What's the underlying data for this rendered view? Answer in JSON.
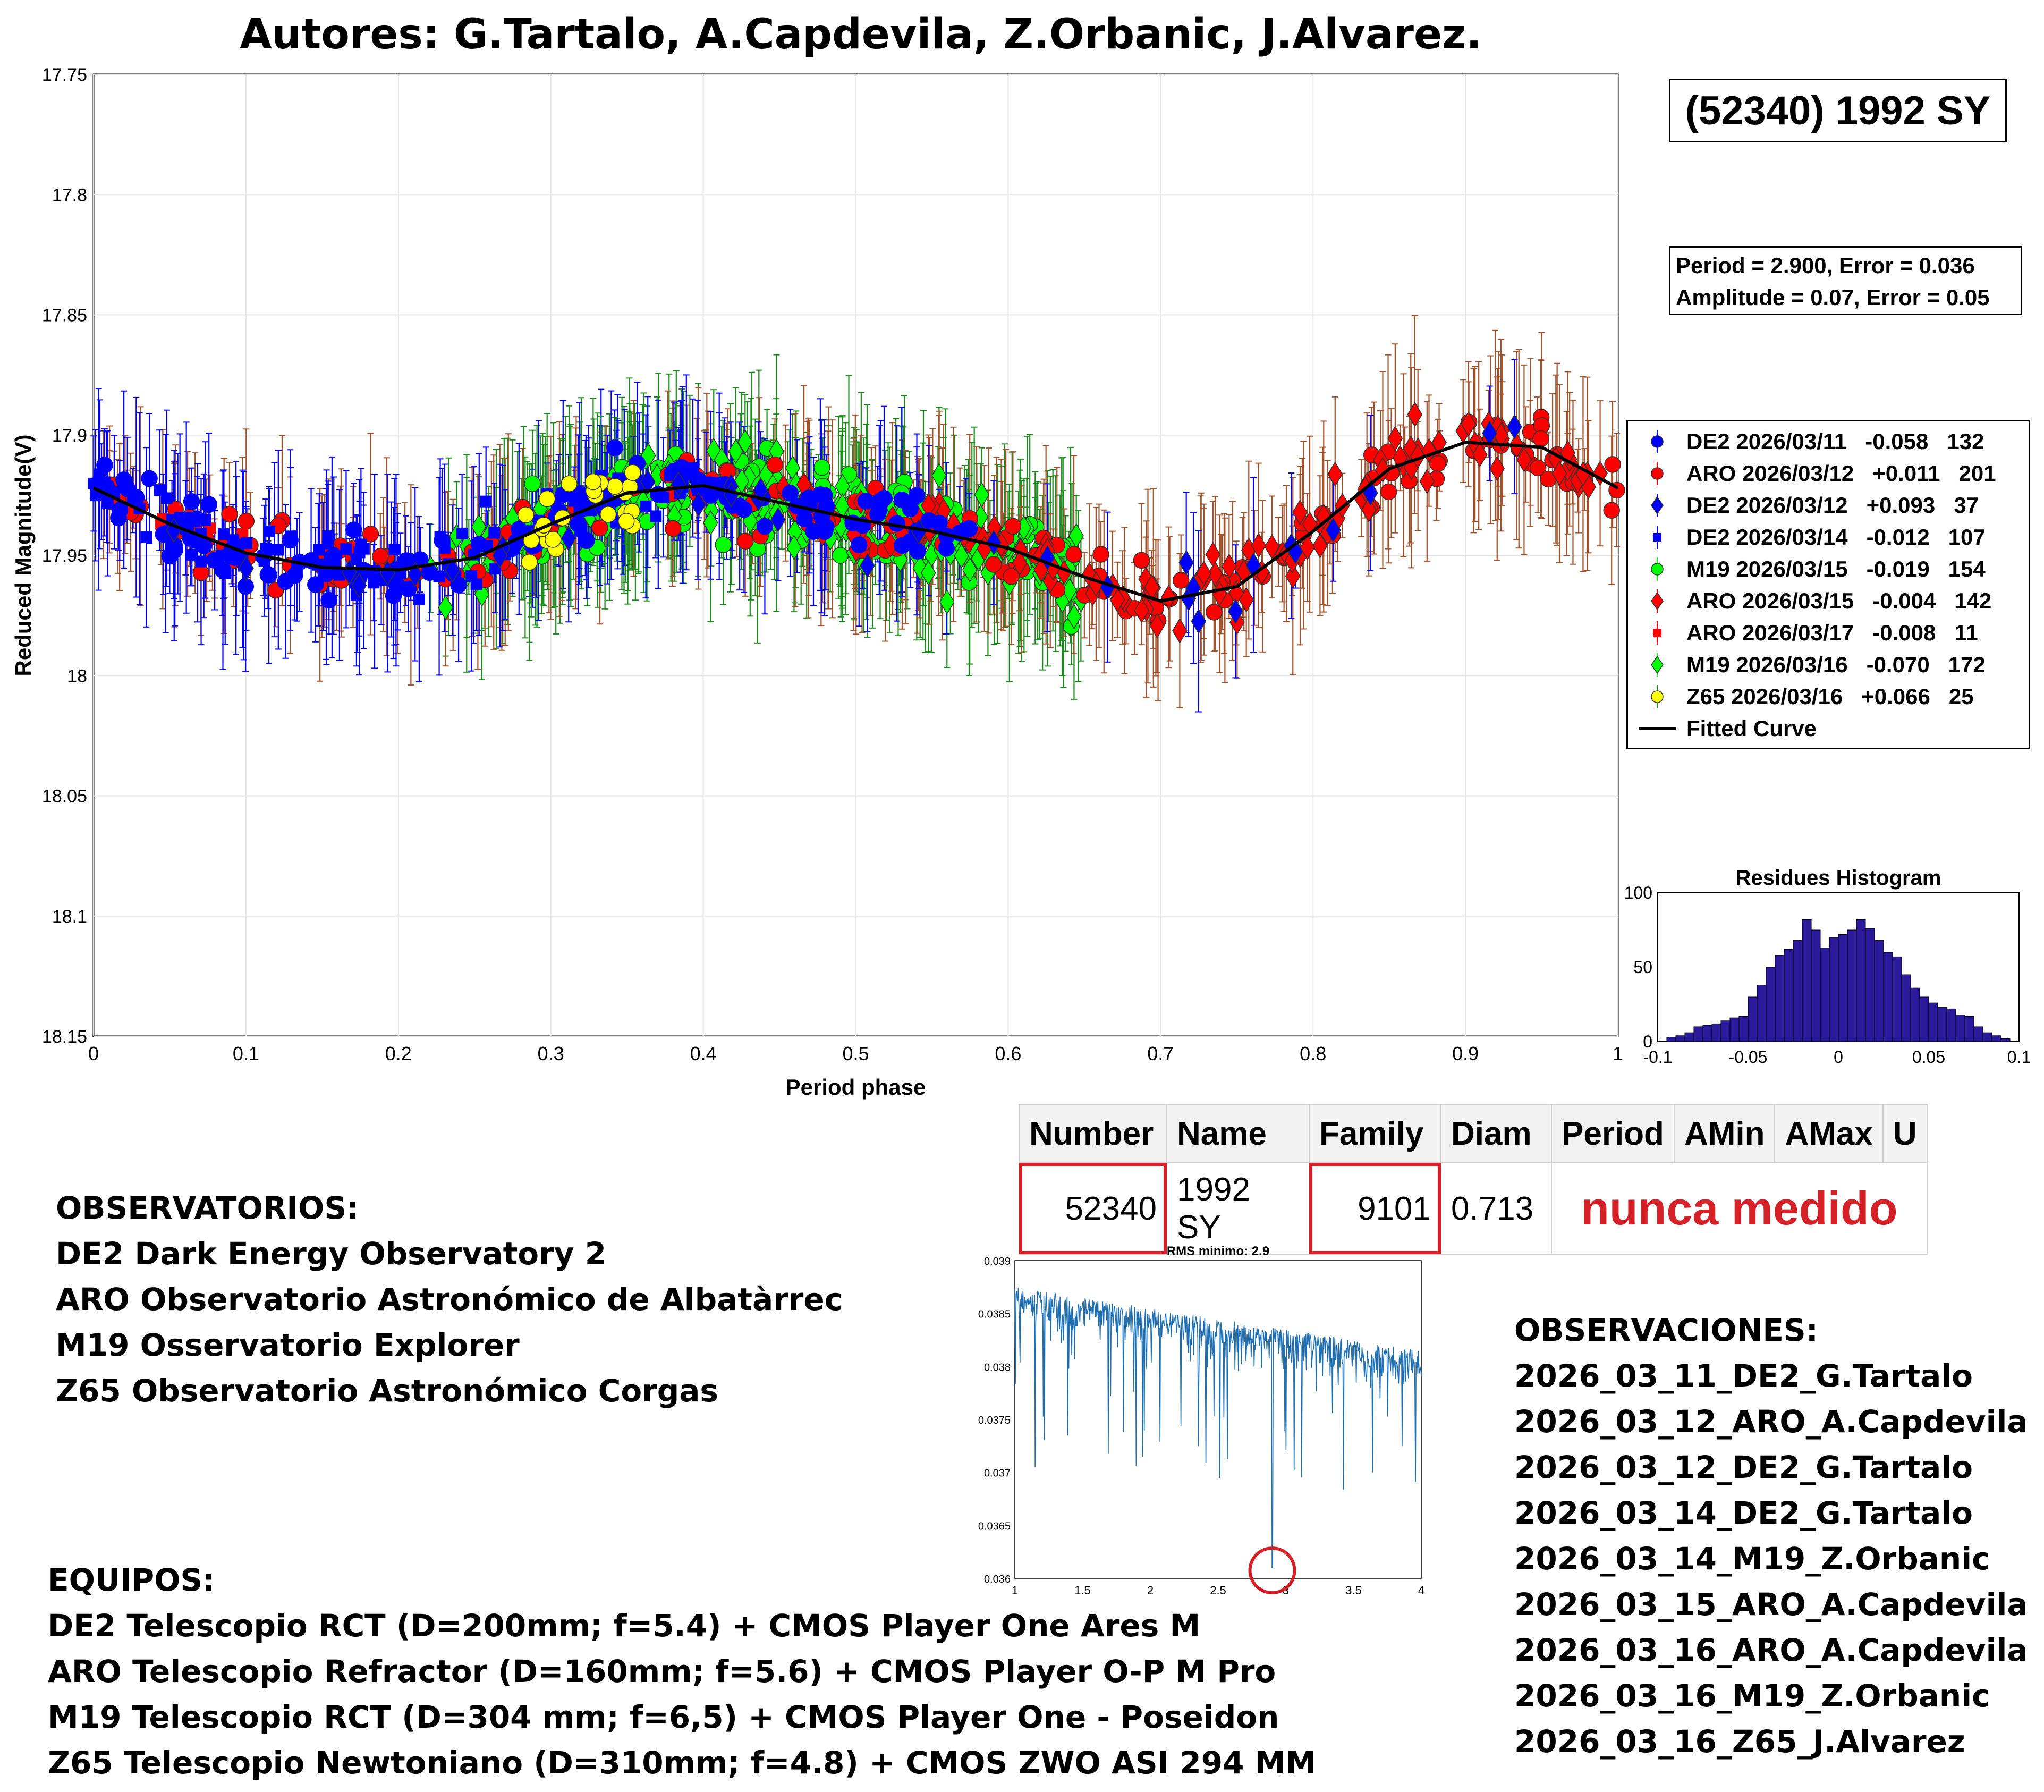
{
  "title": "Autores: G.Tartalo, A.Capdevila, Z.Orbanic, J.Alvarez.",
  "object_label": "(52340) 1992 SY",
  "period_box": {
    "line1": "Period =  2.900, Error = 0.036",
    "line2": "Amplitude = 0.07, Error = 0.05"
  },
  "colors": {
    "blue": "#0000ff",
    "red": "#ff0000",
    "green": "#00ff00",
    "yellow": "#ffff00",
    "err_red": "#a0522d",
    "err_green": "#1a8a1a",
    "hist": "#2b1a9a",
    "line": "#1f6fb0",
    "accent": "#d42027"
  },
  "chart_data": [
    {
      "type": "scatter",
      "title": "",
      "xlabel": "Period phase",
      "ylabel": "Reduced Magnitude(V)",
      "xlim": [
        0,
        1
      ],
      "ylim": [
        18.15,
        17.75
      ],
      "y_reversed": true,
      "xticks": [
        "0",
        "0.1",
        "0.2",
        "0.3",
        "0.4",
        "0.5",
        "0.6",
        "0.7",
        "0.8",
        "0.9",
        "1"
      ],
      "yticks": [
        "17.75",
        "17.8",
        "17.85",
        "17.9",
        "17.95",
        "18",
        "18.05",
        "18.1",
        "18.15"
      ],
      "legend": [
        {
          "name": "DE2 2026/03/11",
          "offset": "-0.058",
          "n": "132",
          "marker": "circle",
          "color": "#0000ff",
          "range": [
            0.0,
            0.58
          ],
          "center": 17.95
        },
        {
          "name": "ARO 2026/03/12",
          "offset": "+0.011",
          "n": "201",
          "marker": "circle",
          "color": "#ff0000",
          "range": [
            0.0,
            1.0
          ],
          "center": 17.94
        },
        {
          "name": "DE2 2026/03/12",
          "offset": "+0.093",
          "n": "37",
          "marker": "diamond",
          "color": "#0000ff",
          "range": [
            0.0,
            1.0
          ],
          "center": 17.93
        },
        {
          "name": "DE2 2026/03/14",
          "offset": "-0.012",
          "n": "107",
          "marker": "square",
          "color": "#0000ff",
          "range": [
            0.0,
            0.42
          ],
          "center": 17.95
        },
        {
          "name": "M19 2026/03/15",
          "offset": "-0.019",
          "n": "154",
          "marker": "circle",
          "color": "#00ff00",
          "range": [
            0.28,
            0.65
          ],
          "center": 17.93
        },
        {
          "name": "ARO 2026/03/15",
          "offset": "-0.004",
          "n": "142",
          "marker": "diamond",
          "color": "#ff0000",
          "range": [
            0.45,
            1.0
          ],
          "center": 17.93
        },
        {
          "name": "ARO 2026/03/17",
          "offset": "-0.008",
          "n": "11",
          "marker": "square",
          "color": "#ff0000",
          "range": [
            0.0,
            0.1
          ],
          "center": 17.93
        },
        {
          "name": "M19 2026/03/16",
          "offset": "-0.070",
          "n": "172",
          "marker": "diamond",
          "color": "#00ff00",
          "range": [
            0.22,
            0.65
          ],
          "center": 17.93
        },
        {
          "name": "Z65 2026/03/16",
          "offset": "+0.066",
          "n": "25",
          "marker": "circle",
          "color": "#ffff00",
          "range": [
            0.28,
            0.36
          ],
          "center": 17.93
        },
        {
          "name": "Fitted Curve",
          "offset": "",
          "n": "",
          "marker": "line",
          "color": "#000000"
        }
      ],
      "fitted_curve": {
        "x": [
          0,
          0.05,
          0.1,
          0.15,
          0.2,
          0.25,
          0.3,
          0.35,
          0.4,
          0.45,
          0.5,
          0.55,
          0.6,
          0.65,
          0.7,
          0.75,
          0.8,
          0.85,
          0.9,
          0.95,
          1.0
        ],
        "y": [
          17.922,
          17.937,
          17.949,
          17.955,
          17.956,
          17.951,
          17.937,
          17.924,
          17.921,
          17.928,
          17.935,
          17.94,
          17.947,
          17.959,
          17.969,
          17.963,
          17.94,
          17.914,
          17.903,
          17.905,
          17.922
        ]
      }
    },
    {
      "type": "bar",
      "title": "Residues Histogram",
      "xlim": [
        -0.1,
        0.1
      ],
      "ylim": [
        0,
        100
      ],
      "xticks": [
        "-0.1",
        "-0.05",
        "0",
        "0.05",
        "0.1"
      ],
      "yticks": [
        "0",
        "50",
        "100"
      ],
      "bin_centers": [
        -0.0925,
        -0.0875,
        -0.0825,
        -0.0775,
        -0.0725,
        -0.0675,
        -0.0625,
        -0.0575,
        -0.0525,
        -0.0475,
        -0.0425,
        -0.0375,
        -0.0325,
        -0.0275,
        -0.0225,
        -0.0175,
        -0.0125,
        -0.0075,
        -0.0025,
        0.0025,
        0.0075,
        0.0125,
        0.0175,
        0.0225,
        0.0275,
        0.0325,
        0.0375,
        0.0425,
        0.0475,
        0.0525,
        0.0575,
        0.0625,
        0.0675,
        0.0725,
        0.0775,
        0.0825,
        0.0875,
        0.0925
      ],
      "values": [
        3,
        4,
        6,
        10,
        11,
        12,
        14,
        16,
        17,
        30,
        38,
        50,
        58,
        62,
        68,
        82,
        75,
        63,
        70,
        72,
        75,
        82,
        76,
        68,
        60,
        57,
        45,
        36,
        30,
        26,
        23,
        22,
        18,
        17,
        10,
        6,
        4,
        2
      ]
    },
    {
      "type": "line",
      "title": "RMS minimo: 2.9",
      "xlim": [
        1,
        4
      ],
      "ylim": [
        0.036,
        0.039
      ],
      "xticks": [
        "1",
        "1.5",
        "2",
        "2.5",
        "3",
        "3.5",
        "4"
      ],
      "yticks": [
        "0.036",
        "0.0365",
        "0.037",
        "0.0375",
        "0.038",
        "0.0385",
        "0.039"
      ],
      "minimum": {
        "x": 2.9,
        "y": 0.0361
      }
    }
  ],
  "asteroid_table": {
    "headers": [
      "Number",
      "Name",
      "Family",
      "Diam",
      "Period",
      "AMin",
      "AMax",
      "U"
    ],
    "number": "52340",
    "name": "1992 SY",
    "family": "9101",
    "diam": "0.713",
    "status": "nunca medido"
  },
  "observatorios": {
    "heading": "OBSERVATORIOS:",
    "items": [
      "DE2 Dark Energy Observatory 2",
      "ARO Observatorio Astronómico de Albatàrrec",
      "M19 Osservatorio Explorer",
      "Z65 Observatorio Astronómico Corgas"
    ]
  },
  "equipos": {
    "heading": "EQUIPOS:",
    "items": [
      "DE2 Telescopio RCT (D=200mm; f=5.4) + CMOS Player One Ares M",
      "ARO Telescopio Refractor (D=160mm; f=5.6) + CMOS Player O-P M Pro",
      "M19 Telescopio RCT (D=304 mm; f=6,5) + CMOS Player One - Poseidon",
      "Z65 Telescopio Newtoniano (D=310mm; f=4.8) + CMOS ZWO ASI 294 MM"
    ]
  },
  "observaciones": {
    "heading": "OBSERVACIONES:",
    "items": [
      "2026_03_11_DE2_G.Tartalo",
      "2026_03_12_ARO_A.Capdevila",
      "2026_03_12_DE2_G.Tartalo",
      "2026_03_14_DE2_G.Tartalo",
      "2026_03_14_M19_Z.Orbanic",
      "2026_03_15_ARO_A.Capdevila",
      "2026_03_16_ARO_A.Capdevila",
      "2026_03_16_M19_Z.Orbanic",
      "2026_03_16_Z65_J.Alvarez"
    ]
  }
}
